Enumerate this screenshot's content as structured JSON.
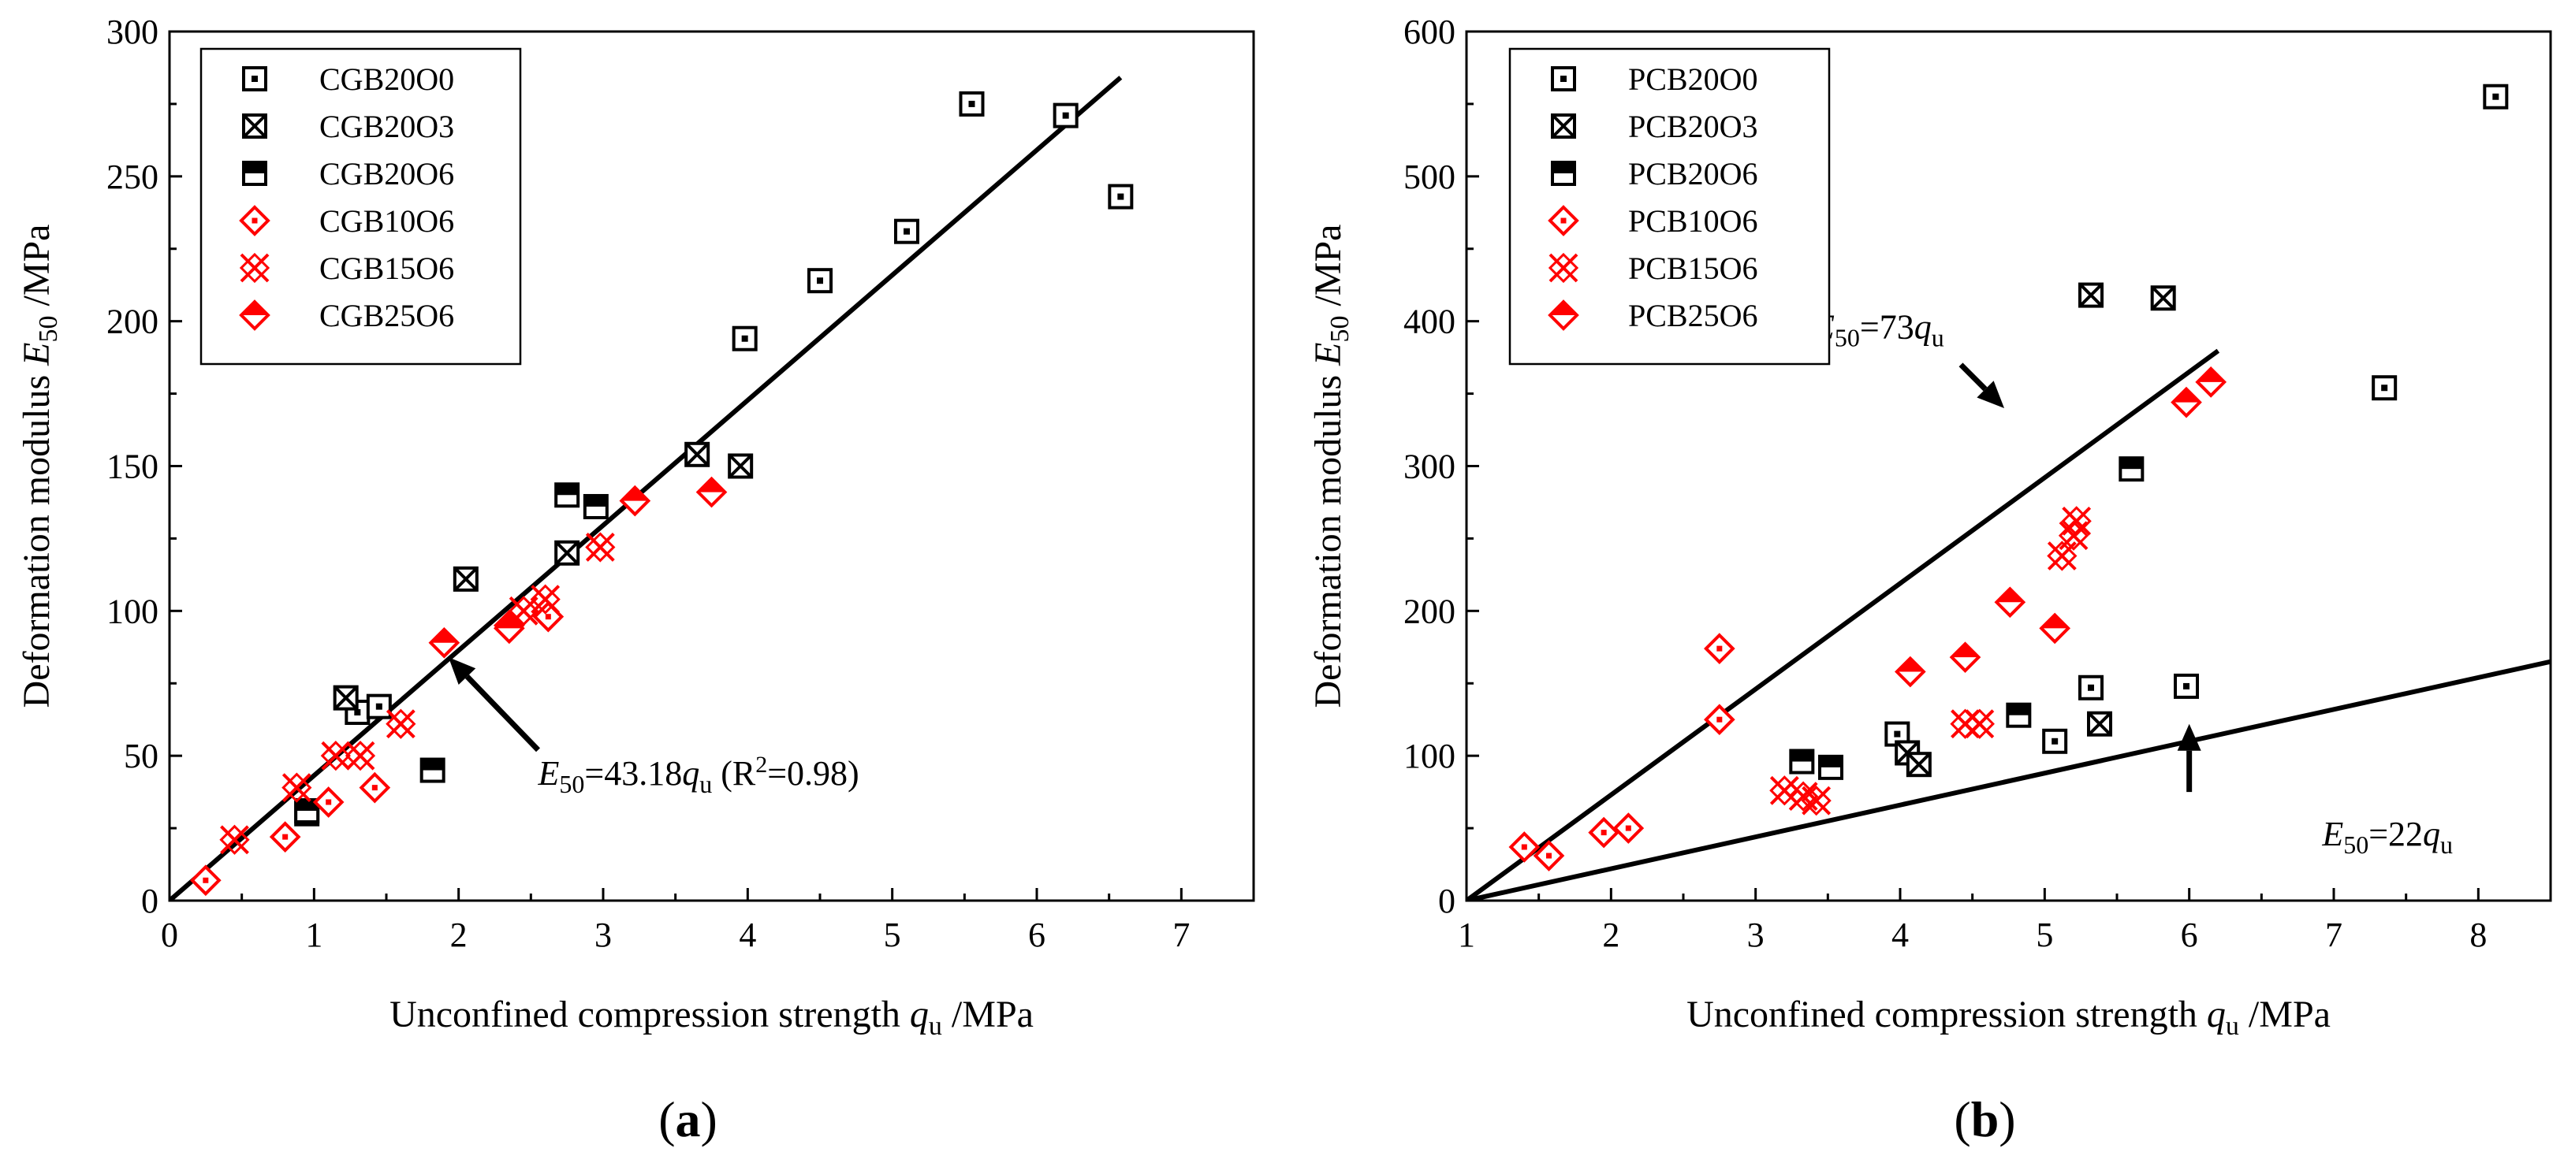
{
  "colors": {
    "black": "#000000",
    "red": "#ff0000"
  },
  "chart_data": [
    {
      "type": "scatter",
      "panel_label": "(a)",
      "xlabel": "Unconfined compression strength q_u /MPa",
      "xlabel_parts": {
        "main": "Unconfined compression strength ",
        "var": "q",
        "sub": "u",
        "unit": " /MPa"
      },
      "ylabel": "Deformation modulus E_50 /MPa",
      "ylabel_parts": {
        "main": "Deformation modulus ",
        "var": "E",
        "sub": "50",
        "unit": " /MPa"
      },
      "xlim": [
        0,
        7.5
      ],
      "ylim": [
        0,
        300
      ],
      "xticks": [
        0,
        1,
        2,
        3,
        4,
        5,
        6,
        7
      ],
      "yticks": [
        0,
        50,
        100,
        150,
        200,
        250,
        300
      ],
      "xtick_labels": [
        "0",
        "1",
        "2",
        "3",
        "4",
        "5",
        "6",
        "7"
      ],
      "ytick_labels": [
        "0",
        "50",
        "100",
        "150",
        "200",
        "250",
        "300"
      ],
      "legend_position": "top-left",
      "series": [
        {
          "name": "CGB20O0",
          "marker": "square-dot",
          "color": "#000000",
          "points": [
            [
              0.95,
              30
            ],
            [
              1.3,
              65
            ],
            [
              1.45,
              67
            ],
            [
              3.98,
              194
            ],
            [
              4.5,
              214
            ],
            [
              5.1,
              231
            ],
            [
              5.55,
              275
            ],
            [
              6.2,
              271
            ],
            [
              6.58,
              243
            ]
          ]
        },
        {
          "name": "CGB20O3",
          "marker": "square-x",
          "color": "#000000",
          "points": [
            [
              1.22,
              70
            ],
            [
              2.05,
              111
            ],
            [
              2.75,
              120
            ],
            [
              3.65,
              154
            ],
            [
              3.95,
              150
            ]
          ]
        },
        {
          "name": "CGB20O6",
          "marker": "square-half",
          "color": "#000000",
          "points": [
            [
              0.95,
              31
            ],
            [
              1.82,
              45
            ],
            [
              2.75,
              140
            ],
            [
              2.95,
              136
            ]
          ]
        },
        {
          "name": "CGB10O6",
          "marker": "diamond-dot",
          "color": "#ff0000",
          "points": [
            [
              0.25,
              7
            ],
            [
              0.8,
              22
            ],
            [
              1.1,
              34
            ],
            [
              1.42,
              39
            ],
            [
              2.62,
              98
            ],
            [
              2.35,
              95
            ]
          ]
        },
        {
          "name": "CGB15O6",
          "marker": "x-cross",
          "color": "#ff0000",
          "points": [
            [
              0.45,
              21
            ],
            [
              0.88,
              39
            ],
            [
              1.15,
              50
            ],
            [
              1.32,
              50
            ],
            [
              1.6,
              61
            ],
            [
              2.45,
              100
            ],
            [
              2.6,
              104
            ],
            [
              2.98,
              122
            ]
          ]
        },
        {
          "name": "CGB25O6",
          "marker": "diamond-half",
          "color": "#ff0000",
          "points": [
            [
              1.9,
              89
            ],
            [
              2.35,
              94
            ],
            [
              3.22,
              138
            ],
            [
              3.75,
              141
            ]
          ]
        }
      ],
      "fit_lines": [
        {
          "slope": 43.18,
          "intercept": 0,
          "x_range": [
            0,
            6.58
          ],
          "label": {
            "lhs_var": "E",
            "lhs_sub": "50",
            "eq": "=43.18",
            "rhs_var": "q",
            "rhs_sub": "u",
            "extra": " (R",
            "sup": "2",
            "extra2": "=0.98)"
          },
          "label_anchor": [
            2.55,
            40
          ],
          "arrow_from": [
            2.55,
            52
          ],
          "arrow_to": [
            1.93,
            84
          ]
        }
      ]
    },
    {
      "type": "scatter",
      "panel_label": "(b)",
      "xlabel": "Unconfined compression strength q_u /MPa",
      "xlabel_parts": {
        "main": "Unconfined compression strength ",
        "var": "q",
        "sub": "u",
        "unit": " /MPa"
      },
      "ylabel": "Deformation modulus E_50 /MPa",
      "ylabel_parts": {
        "main": "Deformation modulus ",
        "var": "E",
        "sub": "50",
        "unit": " /MPa"
      },
      "xlim": [
        1,
        8.5
      ],
      "ylim": [
        0,
        600
      ],
      "xticks": [
        1,
        2,
        3,
        4,
        5,
        6,
        7,
        8
      ],
      "yticks": [
        0,
        100,
        200,
        300,
        400,
        500,
        600
      ],
      "xtick_labels": [
        "1",
        "2",
        "3",
        "4",
        "5",
        "6",
        "7",
        "8"
      ],
      "ytick_labels": [
        "0",
        "100",
        "200",
        "300",
        "400",
        "500",
        "600"
      ],
      "legend_position": "top-left",
      "series": [
        {
          "name": "PCB20O0",
          "marker": "square-dot",
          "color": "#000000",
          "points": [
            [
              3.98,
              115
            ],
            [
              5.07,
              110
            ],
            [
              5.32,
              147
            ],
            [
              5.98,
              148
            ],
            [
              7.35,
              354
            ],
            [
              8.12,
              555
            ]
          ]
        },
        {
          "name": "PCB20O3",
          "marker": "square-x",
          "color": "#000000",
          "points": [
            [
              4.05,
              102
            ],
            [
              4.13,
              94
            ],
            [
              5.32,
              418
            ],
            [
              5.38,
              122
            ],
            [
              5.82,
              416
            ]
          ]
        },
        {
          "name": "PCB20O6",
          "marker": "square-half",
          "color": "#000000",
          "points": [
            [
              3.32,
              96
            ],
            [
              3.52,
              92
            ],
            [
              4.82,
              128
            ],
            [
              5.6,
              298
            ]
          ]
        },
        {
          "name": "PCB10O6",
          "marker": "diamond-dot",
          "color": "#ff0000",
          "points": [
            [
              1.4,
              37
            ],
            [
              1.57,
              31
            ],
            [
              1.95,
              47
            ],
            [
              2.12,
              50
            ],
            [
              2.75,
              125
            ],
            [
              2.75,
              174
            ]
          ]
        },
        {
          "name": "PCB15O6",
          "marker": "x-cross",
          "color": "#ff0000",
          "points": [
            [
              3.2,
              76
            ],
            [
              3.33,
              72
            ],
            [
              3.42,
              69
            ],
            [
              4.45,
              122
            ],
            [
              4.55,
              122
            ],
            [
              5.12,
              238
            ],
            [
              5.2,
              252
            ],
            [
              5.22,
              262
            ]
          ]
        },
        {
          "name": "PCB25O6",
          "marker": "diamond-half",
          "color": "#ff0000",
          "points": [
            [
              4.07,
              158
            ],
            [
              4.45,
              168
            ],
            [
              4.76,
              206
            ],
            [
              5.07,
              188
            ],
            [
              5.98,
              344
            ],
            [
              6.15,
              358
            ]
          ]
        }
      ],
      "fit_lines": [
        {
          "slope": 73,
          "intercept": -73,
          "x_range": [
            1,
            6.2
          ],
          "label": {
            "lhs_var": "E",
            "lhs_sub": "50",
            "eq": "=73",
            "rhs_var": "q",
            "rhs_sub": "u",
            "extra": "",
            "sup": "",
            "extra2": ""
          },
          "label_anchor": [
            3.4,
            388
          ],
          "arrow_from": [
            4.42,
            370
          ],
          "arrow_to": [
            4.72,
            340
          ]
        },
        {
          "slope": 22,
          "intercept": -22,
          "x_range": [
            1,
            8.55
          ],
          "label": {
            "lhs_var": "E",
            "lhs_sub": "50",
            "eq": "=22",
            "rhs_var": "q",
            "rhs_sub": "u",
            "extra": "",
            "sup": "",
            "extra2": ""
          },
          "label_anchor": [
            6.92,
            38
          ],
          "arrow_from": [
            6.0,
            75
          ],
          "arrow_to": [
            6.0,
            122
          ]
        }
      ]
    }
  ]
}
